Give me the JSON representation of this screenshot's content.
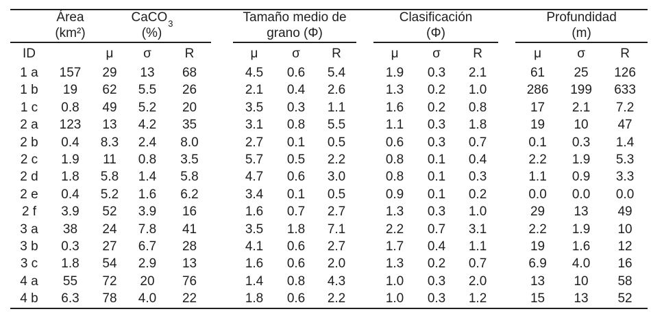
{
  "page": {
    "background": "#ffffff",
    "text_color": "#1e1e1e",
    "rule_color": "#1e1e1e"
  },
  "table": {
    "id_header": "ID",
    "stat_headers": [
      "μ",
      "σ",
      "R"
    ],
    "groups": [
      {
        "title": "Área",
        "unit": "(km²)"
      },
      {
        "title": "CaCO",
        "title_sub": "3",
        "unit": "(%)"
      },
      {
        "title": "Tamaño medio de",
        "unit": "grano (Φ)"
      },
      {
        "title": "Clasificación",
        "unit": "(Φ)"
      },
      {
        "title": "Profundidad",
        "unit": "(m)"
      }
    ],
    "rows": [
      {
        "id": "1 a",
        "area": "157",
        "caco3": [
          "29",
          "13",
          "68"
        ],
        "grano": [
          "4.5",
          "0.6",
          "5.4"
        ],
        "clasif": [
          "1.9",
          "0.3",
          "2.1"
        ],
        "prof": [
          "61",
          "25",
          "126"
        ]
      },
      {
        "id": "1 b",
        "area": "19",
        "caco3": [
          "62",
          "5.5",
          "26"
        ],
        "grano": [
          "2.1",
          "0.4",
          "2.6"
        ],
        "clasif": [
          "1.3",
          "0.2",
          "1.0"
        ],
        "prof": [
          "286",
          "199",
          "633"
        ]
      },
      {
        "id": "1 c",
        "area": "0.8",
        "caco3": [
          "49",
          "5.2",
          "20"
        ],
        "grano": [
          "3.5",
          "0.3",
          "1.1"
        ],
        "clasif": [
          "1.6",
          "0.2",
          "0.8"
        ],
        "prof": [
          "17",
          "2.1",
          "7.2"
        ]
      },
      {
        "id": "2 a",
        "area": "123",
        "caco3": [
          "13",
          "4.2",
          "35"
        ],
        "grano": [
          "3.1",
          "0.8",
          "5.5"
        ],
        "clasif": [
          "1.1",
          "0.3",
          "1.8"
        ],
        "prof": [
          "19",
          "10",
          "47"
        ]
      },
      {
        "id": "2 b",
        "area": "0.4",
        "caco3": [
          "8.3",
          "2.4",
          "8.0"
        ],
        "grano": [
          "2.7",
          "0.1",
          "0.5"
        ],
        "clasif": [
          "0.6",
          "0.3",
          "0.7"
        ],
        "prof": [
          "0.1",
          "0.3",
          "1.4"
        ]
      },
      {
        "id": "2 c",
        "area": "1.9",
        "caco3": [
          "11",
          "0.8",
          "3.5"
        ],
        "grano": [
          "5.7",
          "0.5",
          "2.2"
        ],
        "clasif": [
          "0.8",
          "0.1",
          "0.4"
        ],
        "prof": [
          "2.2",
          "1.9",
          "5.3"
        ]
      },
      {
        "id": "2 d",
        "area": "1.8",
        "caco3": [
          "5.8",
          "1.4",
          "5.8"
        ],
        "grano": [
          "4.7",
          "0.6",
          "3.0"
        ],
        "clasif": [
          "0.8",
          "0.1",
          "0.3"
        ],
        "prof": [
          "1.1",
          "0.9",
          "3.3"
        ]
      },
      {
        "id": "2 e",
        "area": "0.4",
        "caco3": [
          "5.2",
          "1.6",
          "6.2"
        ],
        "grano": [
          "3.4",
          "0.1",
          "0.5"
        ],
        "clasif": [
          "0.9",
          "0.1",
          "0.2"
        ],
        "prof": [
          "0.0",
          "0.0",
          "0.0"
        ]
      },
      {
        "id": "2 f",
        "area": "3.9",
        "caco3": [
          "52",
          "3.9",
          "16"
        ],
        "grano": [
          "1.6",
          "0.7",
          "2.7"
        ],
        "clasif": [
          "1.3",
          "0.3",
          "1.0"
        ],
        "prof": [
          "29",
          "13",
          "49"
        ]
      },
      {
        "id": "3 a",
        "area": "38",
        "caco3": [
          "24",
          "7.8",
          "41"
        ],
        "grano": [
          "3.5",
          "1.8",
          "7.1"
        ],
        "clasif": [
          "2.2",
          "0.7",
          "3.1"
        ],
        "prof": [
          "2.2",
          "1.9",
          "10"
        ]
      },
      {
        "id": "3 b",
        "area": "0.3",
        "caco3": [
          "27",
          "6.7",
          "28"
        ],
        "grano": [
          "4.1",
          "0.6",
          "2.7"
        ],
        "clasif": [
          "1.7",
          "0.4",
          "1.1"
        ],
        "prof": [
          "19",
          "1.6",
          "12"
        ]
      },
      {
        "id": "3 c",
        "area": "1.8",
        "caco3": [
          "54",
          "2.9",
          "13"
        ],
        "grano": [
          "1.6",
          "0.6",
          "2.0"
        ],
        "clasif": [
          "1.3",
          "0.2",
          "0.7"
        ],
        "prof": [
          "6.9",
          "4.0",
          "16"
        ]
      },
      {
        "id": "4 a",
        "area": "55",
        "caco3": [
          "72",
          "20",
          "76"
        ],
        "grano": [
          "1.4",
          "0.8",
          "4.3"
        ],
        "clasif": [
          "1.0",
          "0.3",
          "2.0"
        ],
        "prof": [
          "13",
          "10",
          "58"
        ]
      },
      {
        "id": "4 b",
        "area": "6.3",
        "caco3": [
          "78",
          "4.0",
          "22"
        ],
        "grano": [
          "1.8",
          "0.6",
          "2.2"
        ],
        "clasif": [
          "1.0",
          "0.3",
          "1.2"
        ],
        "prof": [
          "15",
          "13",
          "52"
        ]
      }
    ]
  }
}
